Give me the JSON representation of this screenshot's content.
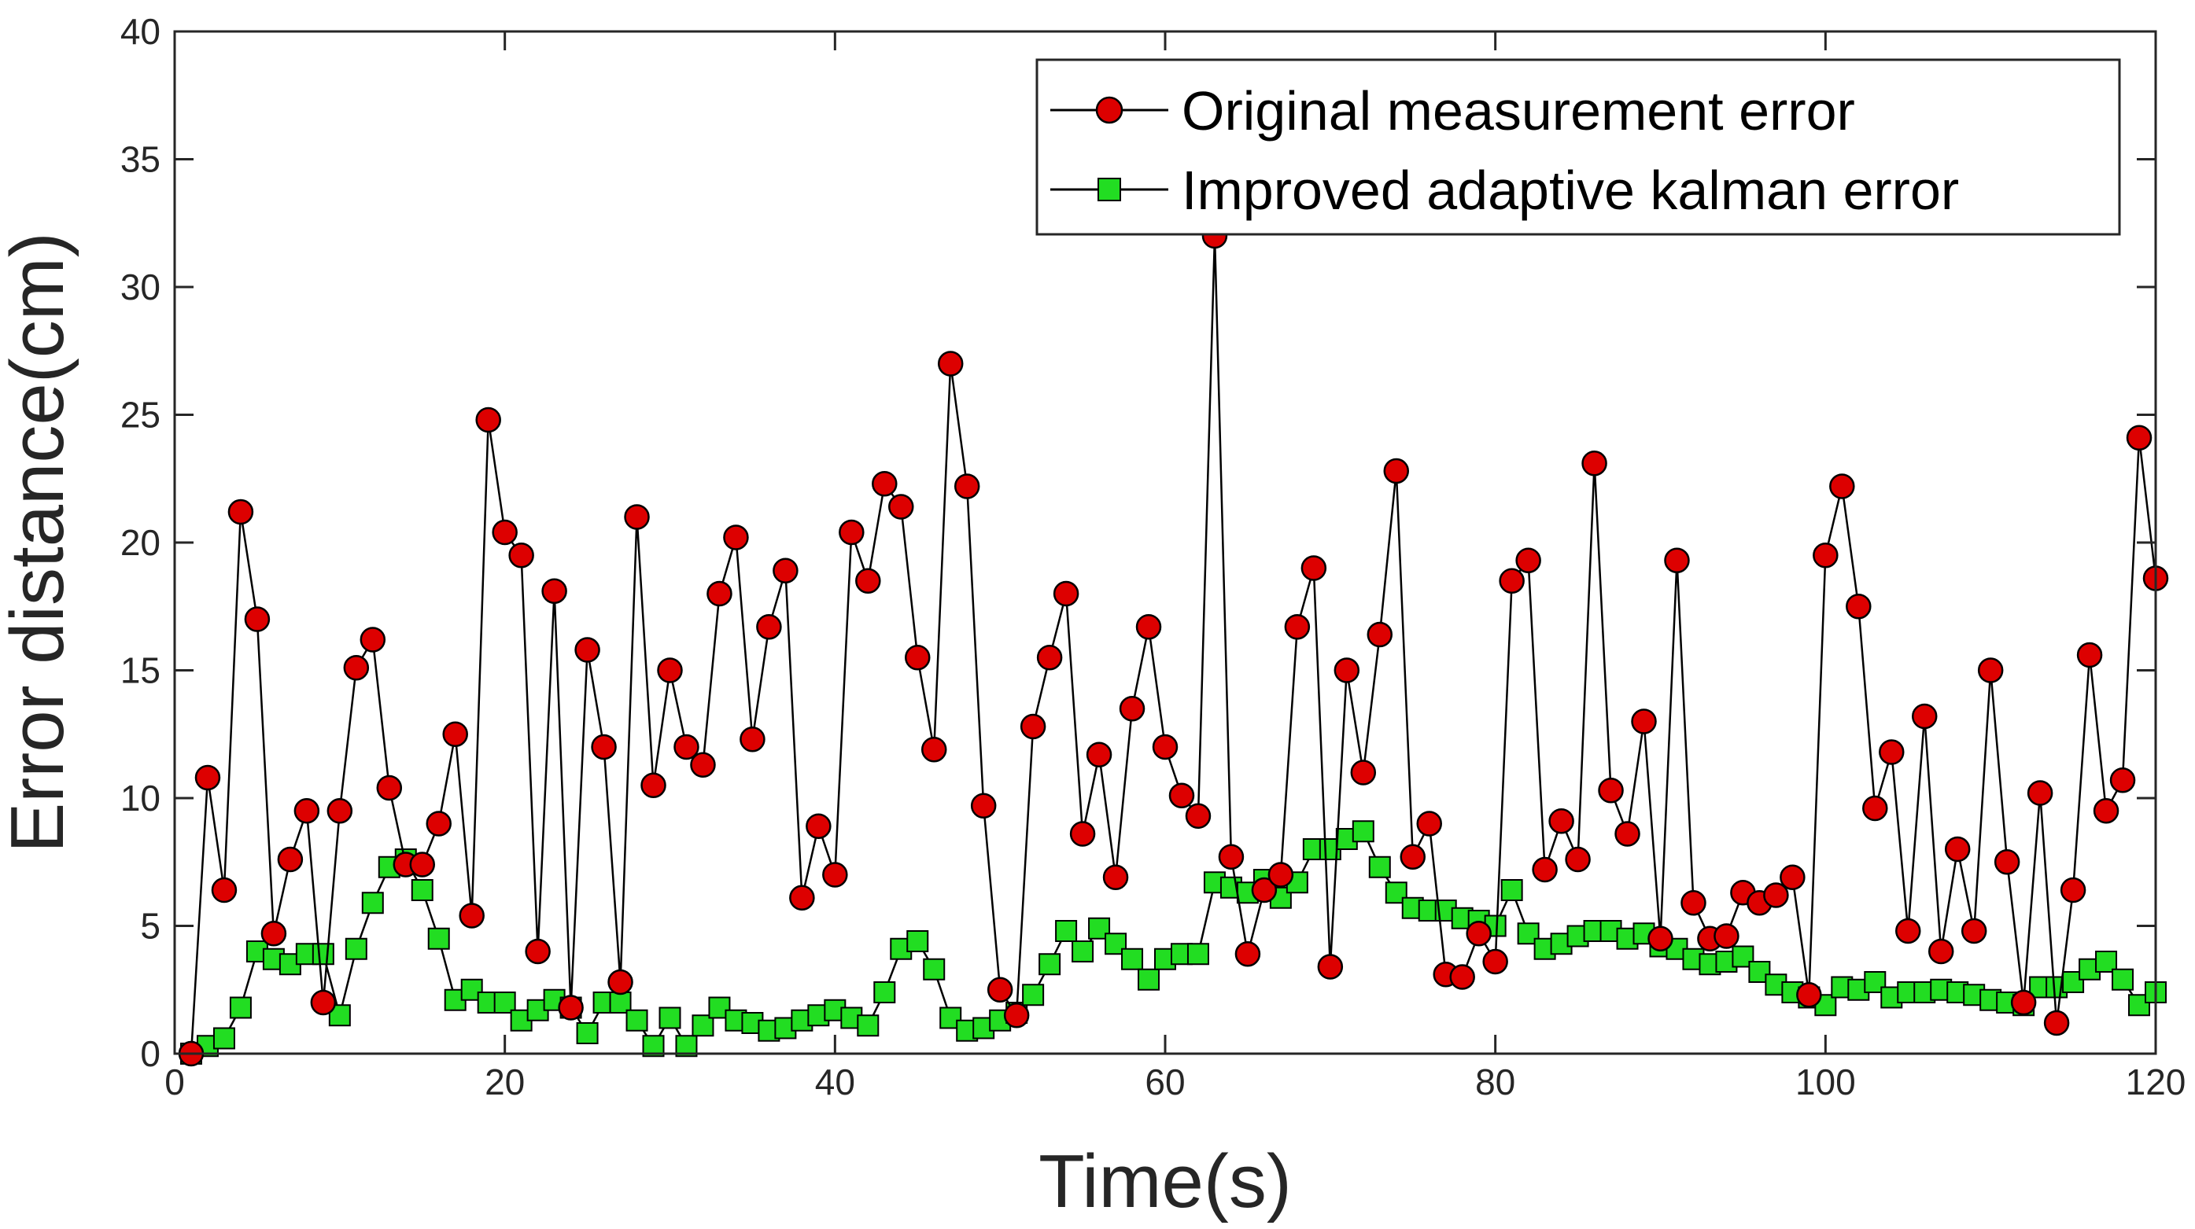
{
  "chart_data": {
    "type": "line",
    "title": "",
    "xlabel": "Time(s)",
    "ylabel": "Error distance(cm)",
    "xlim": [
      0,
      120
    ],
    "ylim": [
      0,
      40
    ],
    "xticks": [
      0,
      20,
      40,
      60,
      80,
      100,
      120
    ],
    "yticks": [
      0,
      5,
      10,
      15,
      20,
      25,
      30,
      35,
      40
    ],
    "grid": false,
    "legend_position": "top-right",
    "x": [
      1,
      2,
      3,
      4,
      5,
      6,
      7,
      8,
      9,
      10,
      11,
      12,
      13,
      14,
      15,
      16,
      17,
      18,
      19,
      20,
      21,
      22,
      23,
      24,
      25,
      26,
      27,
      28,
      29,
      30,
      31,
      32,
      33,
      34,
      35,
      36,
      37,
      38,
      39,
      40,
      41,
      42,
      43,
      44,
      45,
      46,
      47,
      48,
      49,
      50,
      51,
      52,
      53,
      54,
      55,
      56,
      57,
      58,
      59,
      60,
      61,
      62,
      63,
      64,
      65,
      66,
      67,
      68,
      69,
      70,
      71,
      72,
      73,
      74,
      75,
      76,
      77,
      78,
      79,
      80,
      81,
      82,
      83,
      84,
      85,
      86,
      87,
      88,
      89,
      90,
      91,
      92,
      93,
      94,
      95,
      96,
      97,
      98,
      99,
      100,
      101,
      102,
      103,
      104,
      105,
      106,
      107,
      108,
      109,
      110,
      111,
      112,
      113,
      114,
      115,
      116,
      117,
      118,
      119,
      120
    ],
    "series": [
      {
        "name": "Original measurement error",
        "color": "#000000",
        "marker": "circle",
        "marker_fill": "#dd0000",
        "values": [
          0,
          10.8,
          6.4,
          21.2,
          17,
          4.7,
          7.6,
          9.5,
          2,
          9.5,
          15.1,
          16.2,
          10.4,
          7.4,
          7.4,
          9,
          12.5,
          5.4,
          24.8,
          20.4,
          19.5,
          4,
          18.1,
          1.8,
          15.8,
          12,
          2.8,
          21,
          10.5,
          15,
          12,
          11.3,
          18,
          20.2,
          12.3,
          16.7,
          18.9,
          6.1,
          8.9,
          7,
          20.4,
          18.5,
          22.3,
          21.4,
          15.5,
          11.9,
          27,
          22.2,
          9.7,
          2.5,
          1.5,
          12.8,
          15.5,
          18,
          8.6,
          11.7,
          6.9,
          13.5,
          16.7,
          12,
          10.1,
          9.3,
          32,
          7.7,
          3.9,
          6.4,
          7,
          16.7,
          19,
          3.4,
          15,
          11,
          16.4,
          22.8,
          7.7,
          9,
          3.1,
          3,
          4.7,
          3.6,
          18.5,
          19.3,
          7.2,
          9.1,
          7.6,
          23.1,
          10.3,
          8.6,
          13,
          4.5,
          19.3,
          5.9,
          4.5,
          4.6,
          6.3,
          5.9,
          6.2,
          6.9,
          2.3,
          19.5,
          22.2,
          17.5,
          9.6,
          11.8,
          4.8,
          13.2,
          4,
          8,
          4.8,
          15,
          7.5,
          2,
          10.2,
          1.2,
          6.4,
          15.6,
          9.5,
          10.7,
          24.1,
          18.6
        ]
      },
      {
        "name": "Improved adaptive kalman error",
        "color": "#000000",
        "marker": "square",
        "marker_fill": "#22dd22",
        "values": [
          0,
          0.3,
          0.6,
          1.8,
          4,
          3.7,
          3.5,
          3.9,
          3.9,
          1.5,
          4.1,
          5.9,
          7.3,
          7.6,
          6.4,
          4.5,
          2.1,
          2.5,
          2,
          2,
          1.3,
          1.7,
          2.1,
          1.8,
          0.8,
          2,
          2,
          1.3,
          0.3,
          1.4,
          0.3,
          1.1,
          1.8,
          1.3,
          1.2,
          0.9,
          1,
          1.3,
          1.5,
          1.7,
          1.4,
          1.1,
          2.4,
          4.1,
          4.4,
          3.3,
          1.4,
          0.9,
          1,
          1.3,
          1.6,
          2.3,
          3.5,
          4.8,
          4,
          4.9,
          4.3,
          3.7,
          2.9,
          3.7,
          3.9,
          3.9,
          6.7,
          6.5,
          6.3,
          6.8,
          6.1,
          6.7,
          8,
          8,
          8.4,
          8.7,
          7.3,
          6.3,
          5.7,
          5.6,
          5.6,
          5.3,
          5.2,
          5,
          6.4,
          4.7,
          4.1,
          4.3,
          4.6,
          4.8,
          4.8,
          4.5,
          4.7,
          4.2,
          4.1,
          3.7,
          3.5,
          3.6,
          3.8,
          3.2,
          2.7,
          2.4,
          2.2,
          1.9,
          2.6,
          2.5,
          2.8,
          2.2,
          2.4,
          2.4,
          2.5,
          2.4,
          2.3,
          2.1,
          2,
          1.9,
          2.6,
          2.6,
          2.8,
          3.3,
          3.6,
          2.9,
          1.9,
          2.4
        ]
      }
    ]
  },
  "colors": {
    "axis": "#262626",
    "line": "#000000",
    "original_marker": "#dd0000",
    "kalman_marker": "#22dd22",
    "background": "#ffffff"
  }
}
